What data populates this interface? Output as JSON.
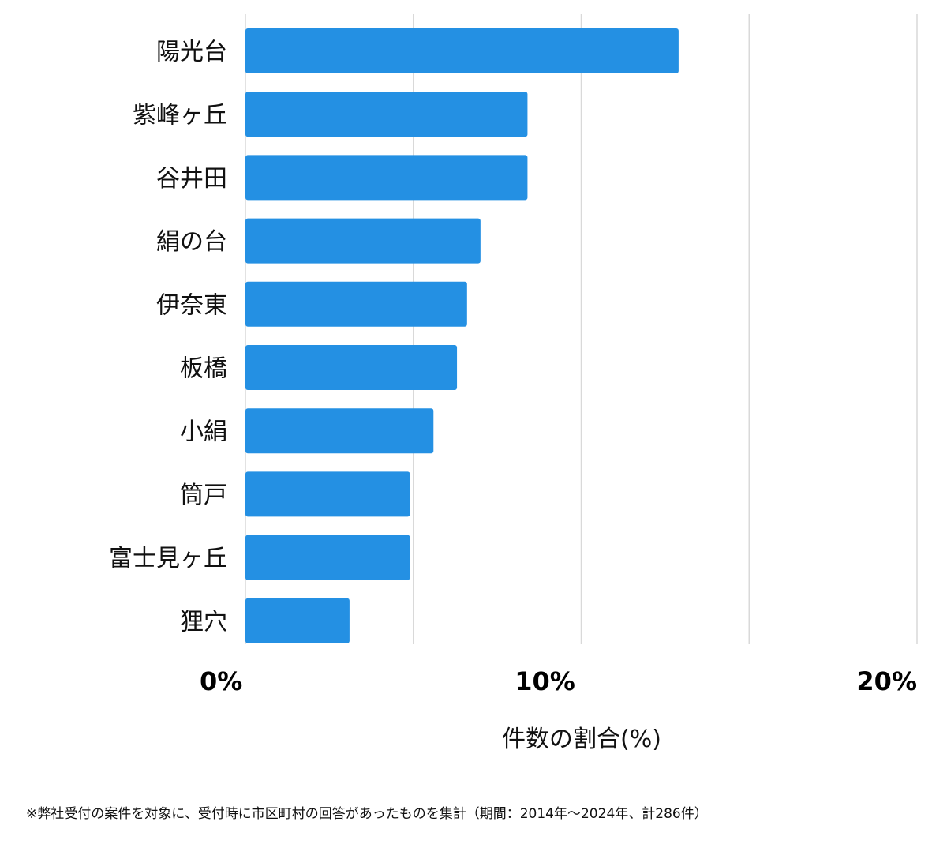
{
  "chart_data": {
    "type": "bar",
    "orientation": "horizontal",
    "categories": [
      "陽光台",
      "紫峰ヶ丘",
      "谷井田",
      "絹の台",
      "伊奈東",
      "板橋",
      "小絹",
      "筒戸",
      "富士見ヶ丘",
      "狸穴"
    ],
    "values": [
      12.9,
      8.4,
      8.4,
      7.0,
      6.6,
      6.3,
      5.6,
      4.9,
      4.9,
      3.1
    ],
    "xlim": [
      0,
      20
    ],
    "ticks": [
      {
        "value": 0,
        "label": "0%"
      },
      {
        "value": 10,
        "label": "10%"
      },
      {
        "value": 20,
        "label": "20%"
      }
    ],
    "gridlines_at": [
      0,
      5,
      10,
      15,
      20
    ],
    "xlabel": "件数の割合(%)",
    "ylabel": "",
    "grid": true,
    "bar_color": "#2490e3",
    "grid_color": "#d9d9d9"
  },
  "footnote": "※弊社受付の案件を対象に、受付時に市区町村の回答があったものを集計（期間：2014年〜2024年、計286件）"
}
